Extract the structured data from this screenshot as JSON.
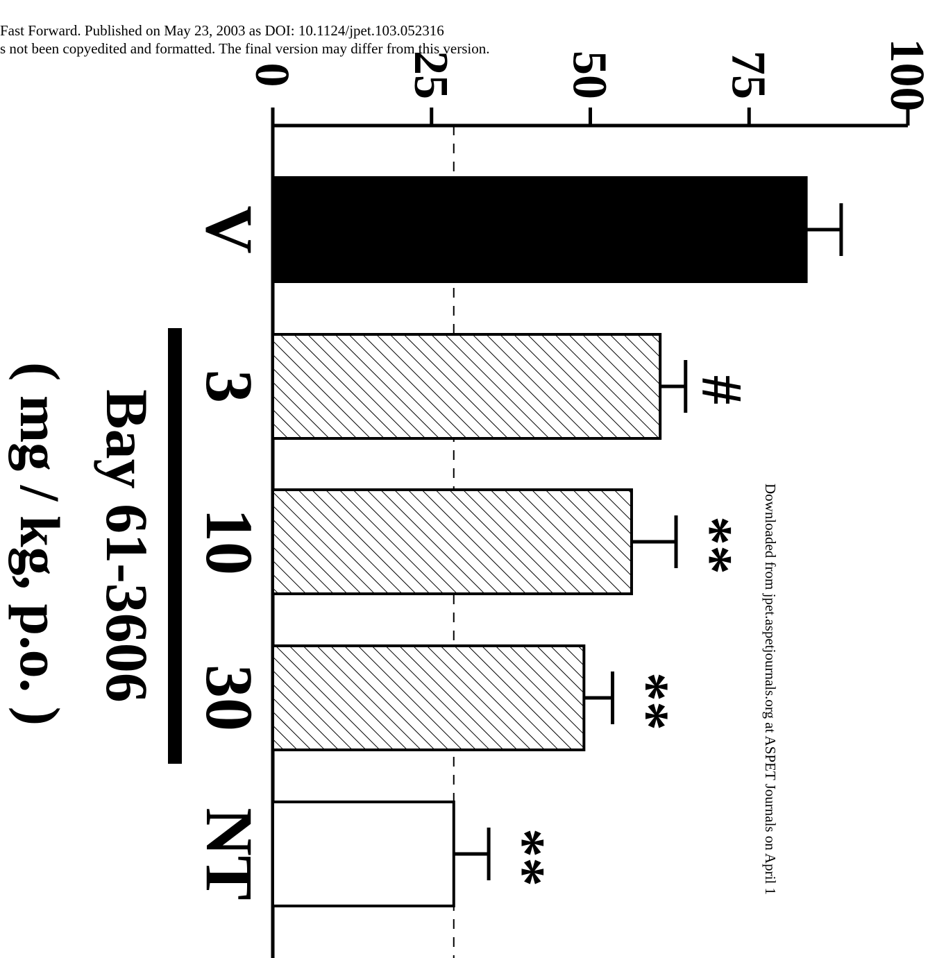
{
  "header": {
    "line1": "Fast Forward. Published on May 23, 2003 as DOI: 10.1124/jpet.103.052316",
    "line2": "s not been copyedited and formatted. The final version may differ from this version."
  },
  "side_note": "Downloaded from jpet.aspetjournals.org at ASPET Journals on April 1",
  "chart_data": {
    "type": "bar",
    "orientation": "rotated-90-clockwise",
    "categories": [
      "V",
      "3",
      "10",
      "30",
      "NT"
    ],
    "values": [
      84,
      61,
      56.5,
      49,
      28.5
    ],
    "errors": [
      5.5,
      4,
      7,
      4.5,
      5.5
    ],
    "fills": [
      "solid",
      "hatched",
      "hatched",
      "hatched",
      "open"
    ],
    "significance": [
      "",
      "#",
      "**",
      "**",
      "**"
    ],
    "reference_line": 28.5,
    "yticks": [
      0,
      25,
      50,
      75,
      100
    ],
    "ylim": [
      0,
      100
    ],
    "xlabel": "Bay 61-3606",
    "xunit": "( mg / kg, p.o. )",
    "colors": {
      "ink": "#000000",
      "paper": "#ffffff"
    }
  }
}
